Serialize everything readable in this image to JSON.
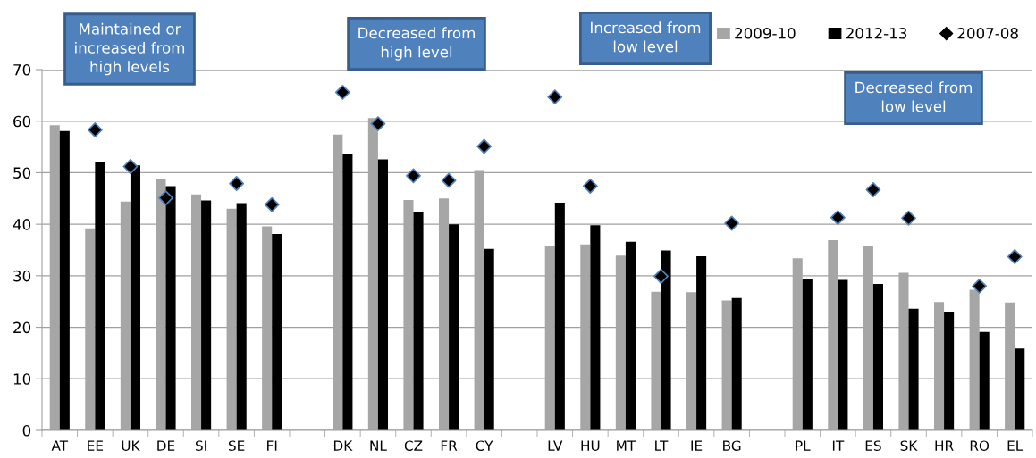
{
  "chart_data": {
    "type": "bar",
    "categories": [
      "AT",
      "EE",
      "UK",
      "DE",
      "SI",
      "SE",
      "FI",
      null,
      "DK",
      "NL",
      "CZ",
      "FR",
      "CY",
      null,
      "LV",
      "HU",
      "MT",
      "LT",
      "IE",
      "BG",
      null,
      "PL",
      "IT",
      "ES",
      "SK",
      "HR",
      "RO",
      "EL"
    ],
    "series": [
      {
        "name": "2009-10",
        "color": "#a6a6a6",
        "values": [
          59.2,
          39.2,
          44.4,
          48.8,
          45.8,
          43.0,
          39.6,
          null,
          57.4,
          60.6,
          44.7,
          45.0,
          50.5,
          null,
          35.8,
          36.1,
          33.9,
          26.9,
          26.8,
          25.2,
          null,
          33.4,
          36.9,
          35.7,
          30.6,
          24.9,
          27.3,
          24.8
        ]
      },
      {
        "name": "2012-13",
        "color": "#000000",
        "values": [
          58.1,
          52.0,
          51.4,
          47.4,
          44.6,
          44.1,
          38.1,
          null,
          53.7,
          52.6,
          42.4,
          40.0,
          35.2,
          null,
          44.2,
          39.8,
          36.6,
          34.9,
          33.8,
          25.7,
          null,
          29.3,
          29.2,
          28.4,
          23.6,
          23.0,
          19.1,
          15.9
        ]
      },
      {
        "name": "2007-08",
        "type": "scatter",
        "marker": "diamond",
        "color": "#000000",
        "values": [
          null,
          58.3,
          51.2,
          45.1,
          null,
          47.9,
          43.8,
          null,
          65.6,
          59.5,
          49.4,
          48.5,
          55.1,
          null,
          64.7,
          47.4,
          null,
          29.9,
          null,
          40.2,
          null,
          null,
          41.3,
          46.7,
          41.2,
          null,
          28.0,
          33.7
        ]
      }
    ],
    "ylim": [
      0,
      70
    ],
    "yticks": [
      0,
      10,
      20,
      30,
      40,
      50,
      60,
      70
    ],
    "grid": "y",
    "legend": "top right",
    "annotations": [
      "Maintained or\nincreased from\nhigh levels",
      "Decreased from\nhigh level",
      "Increased from\nlow level",
      "Decreased from\nlow level"
    ]
  }
}
